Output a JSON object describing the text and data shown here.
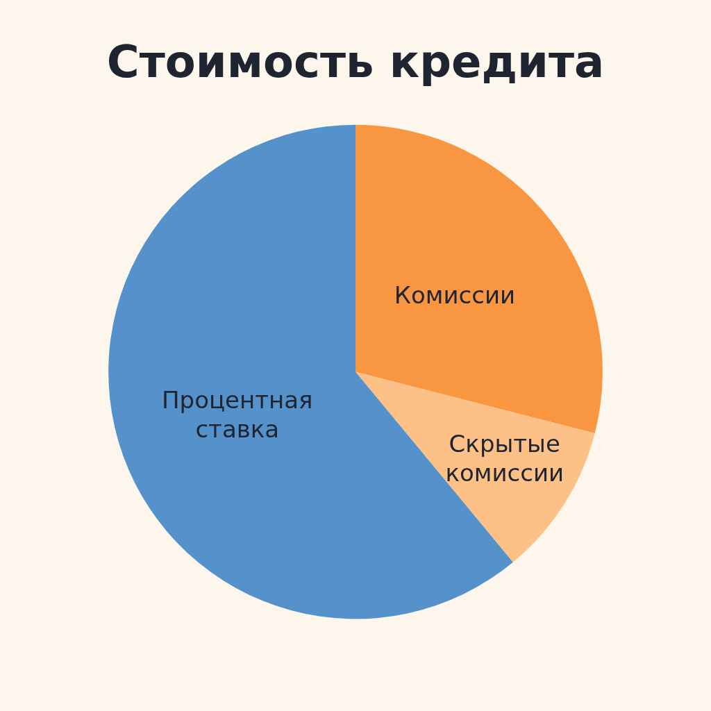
{
  "chart_data": {
    "type": "pie",
    "title": "Стоимость кредита",
    "categories": [
      "Комиссии",
      "Скрытые комиссии",
      "Процентная ставка"
    ],
    "values": [
      29,
      10,
      61
    ],
    "colors": [
      "#f99642",
      "#fdc187",
      "#5592cb"
    ],
    "legend": false
  }
}
